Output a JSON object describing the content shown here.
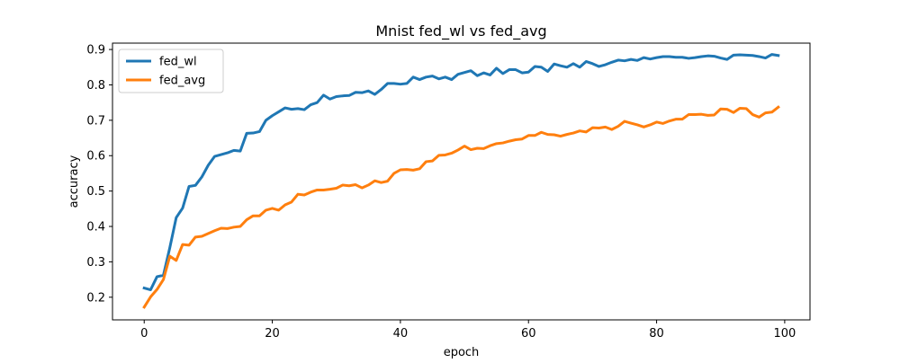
{
  "chart_data": {
    "type": "line",
    "title": "Mnist fed_wl vs fed_avg",
    "xlabel": "epoch",
    "ylabel": "accuracy",
    "xlim": [
      -4.95,
      103.95
    ],
    "ylim": [
      0.136,
      0.918
    ],
    "xticks": [
      0,
      20,
      40,
      60,
      80,
      100
    ],
    "yticks": [
      0.2,
      0.3,
      0.4,
      0.5,
      0.6,
      0.7,
      0.8,
      0.9
    ],
    "xtick_labels": [
      "0",
      "20",
      "40",
      "60",
      "80",
      "100"
    ],
    "ytick_labels": [
      "0.2",
      "0.3",
      "0.4",
      "0.5",
      "0.6",
      "0.7",
      "0.8",
      "0.9"
    ],
    "grid": false,
    "legend": "upper-left",
    "series": [
      {
        "name": "fed_wl",
        "color": "#1f77b4",
        "x": [
          0,
          1,
          2,
          3,
          4,
          5,
          6,
          7,
          8,
          9,
          10,
          11,
          12,
          13,
          14,
          15,
          16,
          17,
          18,
          19,
          20,
          21,
          22,
          23,
          24,
          25,
          26,
          27,
          28,
          29,
          30,
          31,
          32,
          33,
          34,
          35,
          36,
          37,
          38,
          39,
          40,
          41,
          42,
          43,
          44,
          45,
          46,
          47,
          48,
          49,
          50,
          51,
          52,
          53,
          54,
          55,
          56,
          57,
          58,
          59,
          60,
          61,
          62,
          63,
          64,
          65,
          66,
          67,
          68,
          69,
          70,
          71,
          72,
          73,
          74,
          75,
          76,
          77,
          78,
          79,
          80,
          81,
          82,
          83,
          84,
          85,
          86,
          87,
          88,
          89,
          90,
          91,
          92,
          93,
          94,
          95,
          96,
          97,
          98,
          99
        ],
        "y": [
          0.226,
          0.221,
          0.258,
          0.262,
          0.34,
          0.425,
          0.452,
          0.513,
          0.516,
          0.54,
          0.573,
          0.598,
          0.603,
          0.608,
          0.615,
          0.613,
          0.663,
          0.664,
          0.668,
          0.7,
          0.713,
          0.724,
          0.735,
          0.731,
          0.733,
          0.73,
          0.744,
          0.75,
          0.771,
          0.76,
          0.767,
          0.769,
          0.77,
          0.779,
          0.778,
          0.783,
          0.773,
          0.787,
          0.804,
          0.804,
          0.802,
          0.804,
          0.822,
          0.815,
          0.822,
          0.825,
          0.817,
          0.822,
          0.815,
          0.83,
          0.835,
          0.84,
          0.826,
          0.834,
          0.828,
          0.847,
          0.832,
          0.843,
          0.843,
          0.834,
          0.836,
          0.852,
          0.85,
          0.838,
          0.859,
          0.854,
          0.85,
          0.86,
          0.85,
          0.866,
          0.86,
          0.852,
          0.857,
          0.864,
          0.87,
          0.868,
          0.872,
          0.869,
          0.877,
          0.873,
          0.877,
          0.88,
          0.88,
          0.878,
          0.878,
          0.875,
          0.877,
          0.88,
          0.882,
          0.881,
          0.876,
          0.872,
          0.884,
          0.885,
          0.884,
          0.883,
          0.88,
          0.876,
          0.886,
          0.883
        ]
      },
      {
        "name": "fed_avg",
        "color": "#ff7f0e",
        "x": [
          0,
          1,
          2,
          3,
          4,
          5,
          6,
          7,
          8,
          9,
          10,
          11,
          12,
          13,
          14,
          15,
          16,
          17,
          18,
          19,
          20,
          21,
          22,
          23,
          24,
          25,
          26,
          27,
          28,
          29,
          30,
          31,
          32,
          33,
          34,
          35,
          36,
          37,
          38,
          39,
          40,
          41,
          42,
          43,
          44,
          45,
          46,
          47,
          48,
          49,
          50,
          51,
          52,
          53,
          54,
          55,
          56,
          57,
          58,
          59,
          60,
          61,
          62,
          63,
          64,
          65,
          66,
          67,
          68,
          69,
          70,
          71,
          72,
          73,
          74,
          75,
          76,
          77,
          78,
          79,
          80,
          81,
          82,
          83,
          84,
          85,
          86,
          87,
          88,
          89,
          90,
          91,
          92,
          93,
          94,
          95,
          96,
          97,
          98,
          99
        ],
        "y": [
          0.172,
          0.201,
          0.222,
          0.25,
          0.316,
          0.304,
          0.349,
          0.347,
          0.37,
          0.372,
          0.38,
          0.388,
          0.395,
          0.394,
          0.398,
          0.4,
          0.419,
          0.43,
          0.43,
          0.446,
          0.451,
          0.446,
          0.461,
          0.469,
          0.491,
          0.489,
          0.497,
          0.503,
          0.503,
          0.505,
          0.508,
          0.517,
          0.515,
          0.518,
          0.509,
          0.517,
          0.529,
          0.524,
          0.528,
          0.55,
          0.56,
          0.561,
          0.559,
          0.563,
          0.583,
          0.585,
          0.601,
          0.602,
          0.607,
          0.616,
          0.627,
          0.617,
          0.621,
          0.62,
          0.628,
          0.634,
          0.636,
          0.641,
          0.645,
          0.647,
          0.657,
          0.657,
          0.666,
          0.66,
          0.659,
          0.655,
          0.66,
          0.664,
          0.67,
          0.667,
          0.679,
          0.678,
          0.681,
          0.674,
          0.683,
          0.697,
          0.692,
          0.687,
          0.681,
          0.687,
          0.695,
          0.691,
          0.698,
          0.703,
          0.703,
          0.716,
          0.716,
          0.717,
          0.714,
          0.715,
          0.732,
          0.731,
          0.722,
          0.734,
          0.733,
          0.716,
          0.709,
          0.721,
          0.723,
          0.737
        ]
      }
    ]
  }
}
